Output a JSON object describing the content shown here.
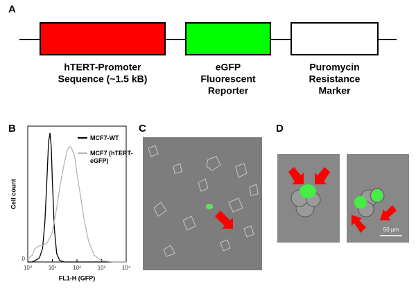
{
  "panel_labels": [
    "A",
    "B",
    "C",
    "D"
  ],
  "panel_a": {
    "elements": [
      {
        "label_lines": [
          "hTERT-Promoter",
          "Sequence (~1.5 kB)"
        ],
        "color": "#ff0000"
      },
      {
        "label_lines": [
          "eGFP",
          "Fluorescent",
          "Reporter"
        ],
        "color": "#00ff00"
      },
      {
        "label_lines": [
          "Puromycin",
          "Resistance",
          "Marker"
        ],
        "color": "#ffffff"
      }
    ]
  },
  "chart_data": {
    "type": "line",
    "x_label": "FL1-H (GFP)",
    "y_label": "Cell count",
    "log_x": true,
    "x": [
      1,
      1.5,
      2,
      3,
      4,
      5,
      6,
      7,
      8,
      9,
      10,
      12,
      15,
      20,
      30,
      40,
      50,
      60,
      80,
      100,
      150,
      200,
      300,
      500,
      1000,
      3000,
      10000
    ],
    "series": [
      {
        "name": "MCF7-WT",
        "color": "#000000",
        "values": [
          0,
          0,
          1,
          3,
          10,
          30,
          60,
          88,
          95,
          85,
          60,
          25,
          6,
          1,
          0,
          0,
          0,
          0,
          0,
          0,
          0,
          0,
          0,
          0,
          0,
          0,
          0
        ]
      },
      {
        "name": "MCF7 (hTERT-eGFP)",
        "color": "#b4b4b4",
        "values": [
          2,
          5,
          10,
          12,
          12,
          13,
          14,
          16,
          18,
          20,
          22,
          30,
          40,
          55,
          72,
          82,
          85,
          84,
          78,
          65,
          45,
          30,
          15,
          5,
          1,
          0,
          0
        ]
      }
    ],
    "xlim": [
      1,
      10000
    ],
    "xticks": [
      {
        "value": 1,
        "label": "10⁰"
      },
      {
        "value": 10,
        "label": "10¹"
      },
      {
        "value": 100,
        "label": "10²"
      },
      {
        "value": 1000,
        "label": "10³"
      },
      {
        "value": 10000,
        "label": "10⁴"
      }
    ],
    "ylim": [
      0,
      100
    ],
    "yticks": [
      0
    ]
  },
  "panel_d": {
    "scale_bar": "50 μm"
  }
}
